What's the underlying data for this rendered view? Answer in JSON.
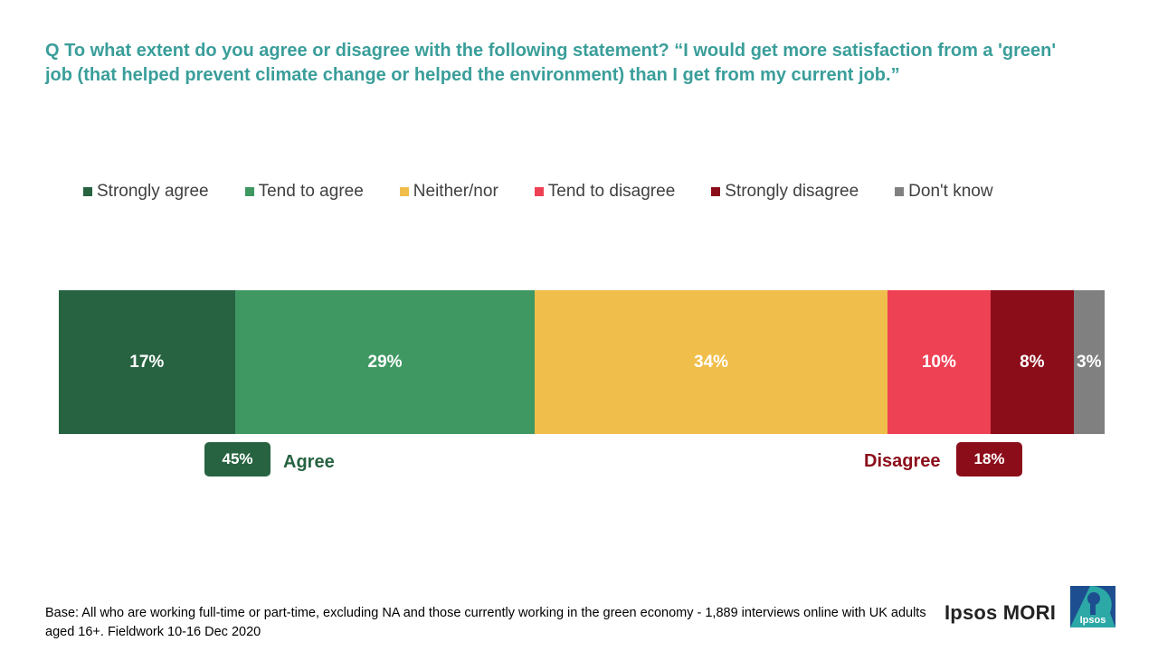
{
  "question": "Q To what extent do you agree or disagree with the following  statement? “I would get more satisfaction from a 'green' job (that helped prevent climate change or helped the environment) than I get from my current job.”",
  "colors": {
    "strongly_agree": "#276341",
    "tend_to_agree": "#3f9862",
    "neither_nor": "#f0be4a",
    "tend_to_disagree": "#ef4154",
    "strongly_disagree": "#8c0d1a",
    "dont_know": "#808080",
    "question_teal": "#3a9e9a"
  },
  "chart_data": {
    "type": "bar",
    "orientation": "horizontal-stacked",
    "series": [
      {
        "name": "Strongly agree",
        "value": 17,
        "label": "17%"
      },
      {
        "name": "Tend to agree",
        "value": 29,
        "label": "29%"
      },
      {
        "name": "Neither/nor",
        "value": 34,
        "label": "34%"
      },
      {
        "name": "Tend to disagree",
        "value": 10,
        "label": "10%"
      },
      {
        "name": "Strongly disagree",
        "value": 8,
        "label": "8%"
      },
      {
        "name": "Don't know",
        "value": 3,
        "label": "3%"
      }
    ],
    "legend_position": "top",
    "grid": false,
    "annotations": {
      "agree": {
        "label": "Agree",
        "value": "45%"
      },
      "disagree": {
        "label": "Disagree",
        "value": "18%"
      }
    }
  },
  "base_note": "Base: All who are working full-time  or part-time, excluding NA and those currently  working in the green economy - 1,889 interviews online with UK adults aged 16+. Fieldwork 10-16 Dec 2020",
  "brand": {
    "name": "Ipsos MORI",
    "logo_text": "Ipsos"
  }
}
